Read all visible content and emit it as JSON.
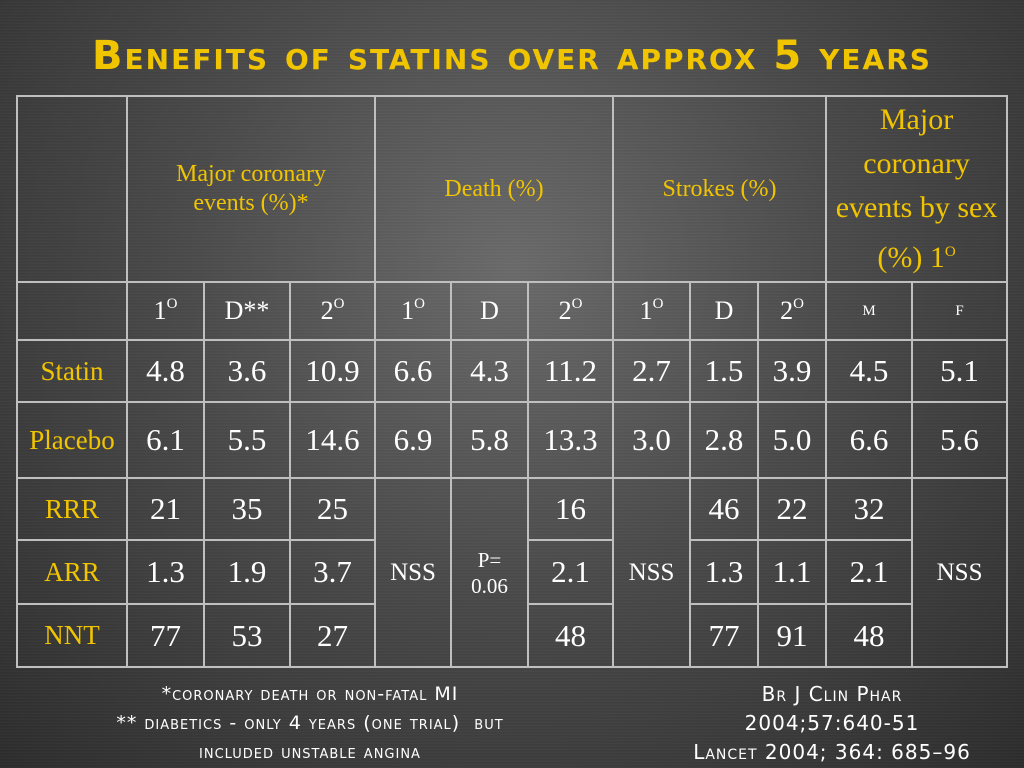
{
  "title": "Benefits of statins over approx 5 years",
  "table": {
    "groups": {
      "major_coronary": "Major coronary events (%)*",
      "death": "Death (%)",
      "strokes": "Strokes (%)",
      "by_sex": "Major coronary events by sex (%) 1O"
    },
    "subheaders": {
      "mc_1": "1O",
      "mc_d": "D**",
      "mc_2": "2O",
      "de_1": "1O",
      "de_d": "D",
      "de_2": "2O",
      "st_1": "1O",
      "st_d": "D",
      "st_2": "2O",
      "sex_m": "M",
      "sex_f": "F"
    },
    "rows": {
      "statin": {
        "label": "Statin",
        "mc_1": "4.8",
        "mc_d": "3.6",
        "mc_2": "10.9",
        "de_1": "6.6",
        "de_d": "4.3",
        "de_2": "11.2",
        "st_1": "2.7",
        "st_d": "1.5",
        "st_2": "3.9",
        "sex_m": "4.5",
        "sex_f": "5.1"
      },
      "placebo": {
        "label": "Placebo",
        "mc_1": "6.1",
        "mc_d": "5.5",
        "mc_2": "14.6",
        "de_1": "6.9",
        "de_d": "5.8",
        "de_2": "13.3",
        "st_1": "3.0",
        "st_d": "2.8",
        "st_2": "5.0",
        "sex_m": "6.6",
        "sex_f": "5.6"
      },
      "rrr": {
        "label": "RRR",
        "mc_1": "21",
        "mc_d": "35",
        "mc_2": "25",
        "de_2": "16",
        "st_d": "46",
        "st_2": "22",
        "sex_m": "32"
      },
      "arr": {
        "label": "ARR",
        "mc_1": "1.3",
        "mc_d": "1.9",
        "mc_2": "3.7",
        "de_2": "2.1",
        "st_d": "1.3",
        "st_2": "1.1",
        "sex_m": "2.1"
      },
      "nnt": {
        "label": "NNT",
        "mc_1": "77",
        "mc_d": "53",
        "mc_2": "27",
        "de_2": "48",
        "st_d": "77",
        "st_2": "91",
        "sex_m": "48"
      }
    },
    "merged": {
      "death_1o": "NSS",
      "death_d_line1": "P=",
      "death_d_line2": "0.06",
      "strokes_1o": "NSS",
      "sex_f": "NSS"
    }
  },
  "footnotes": {
    "left": [
      "*coronary death or non-fatal MI",
      "** diabetics - only 4 years (one trial)  but",
      "included unstable angina"
    ],
    "right": [
      "Br J Clin Phar",
      "2004;57:640-51",
      "Lancet 2004; 364: 685–96"
    ]
  }
}
